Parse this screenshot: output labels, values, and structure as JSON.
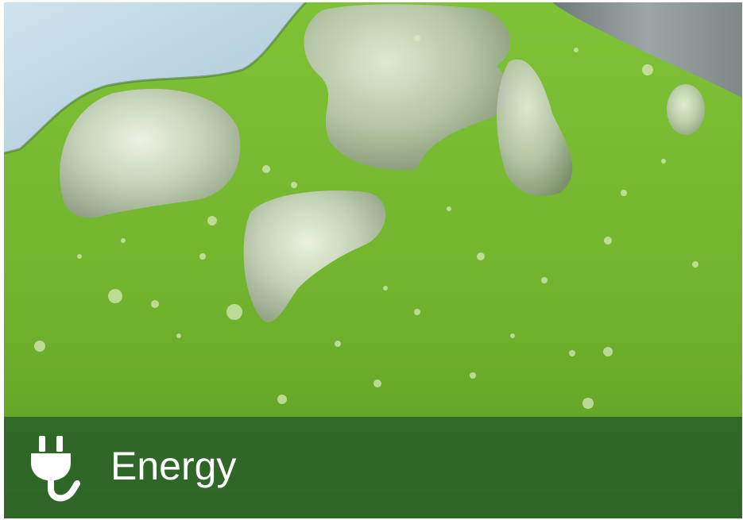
{
  "banner": {
    "title": "Energy",
    "icon": "power-plug-icon",
    "background_color": "#2f6b2c"
  },
  "image": {
    "subject": "algae-green-liquid-with-bubbles"
  },
  "colors": {
    "liquid_green": "#74b52e",
    "sky_blue": "#b9d6e4",
    "metal_grey": "#9aa5a0"
  }
}
